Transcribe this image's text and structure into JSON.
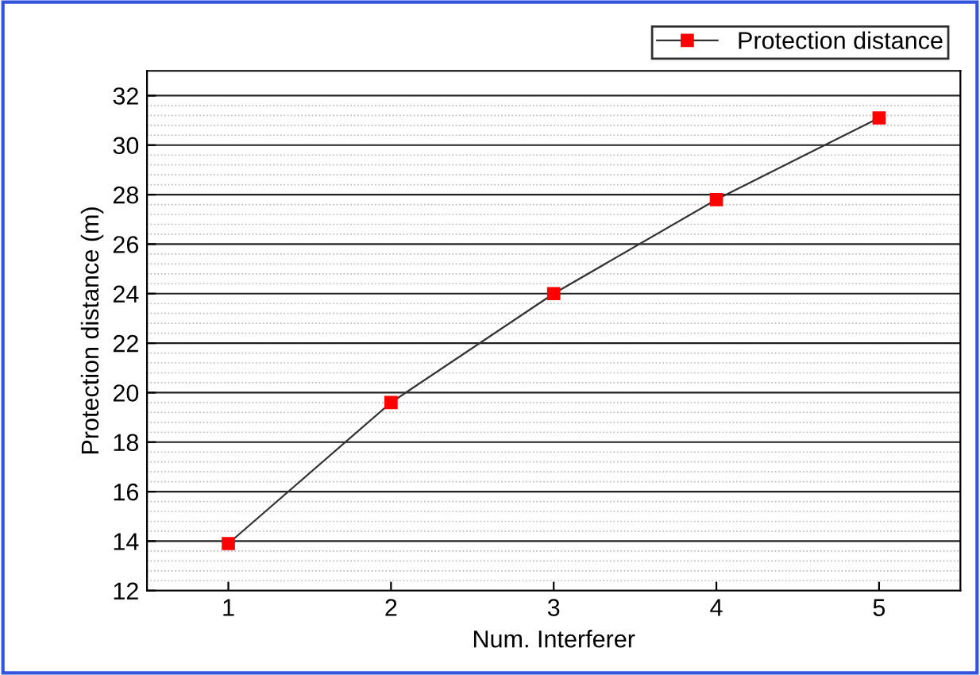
{
  "chart_data": {
    "type": "line",
    "xlabel": "Num. Interferer",
    "ylabel": "Protection distance (m)",
    "x": [
      1,
      2,
      3,
      4,
      5
    ],
    "series": [
      {
        "name": "Protection distance",
        "color": "#ff0000",
        "values": [
          13.9,
          19.6,
          24.0,
          27.8,
          31.1
        ]
      }
    ],
    "xlim": [
      0.5,
      5.5
    ],
    "xticks": [
      1,
      2,
      3,
      4,
      5
    ],
    "ylim": [
      12,
      33
    ],
    "yticks": [
      12,
      14,
      16,
      18,
      20,
      22,
      24,
      26,
      28,
      30,
      32
    ],
    "grid": "y",
    "legend": "top right",
    "marker": "square",
    "line_style": "solid"
  }
}
